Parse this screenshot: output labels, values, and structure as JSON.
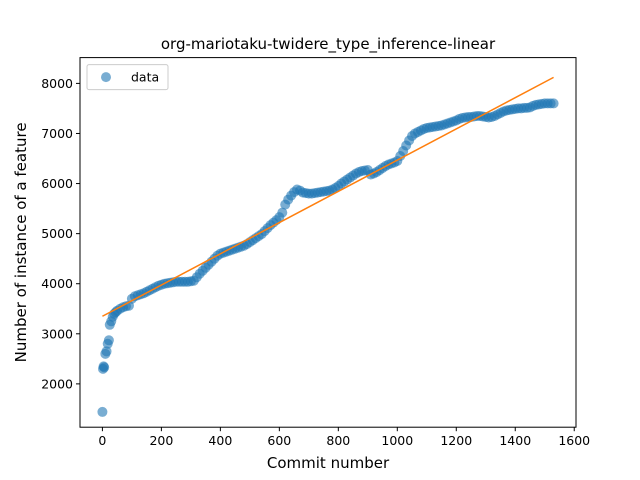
{
  "chart_data": {
    "type": "scatter",
    "title": "org-mariotaku-twidere_type_inference-linear",
    "xlabel": "Commit number",
    "ylabel": "Number of instance of a feature",
    "xlim": [
      -76,
      1606
    ],
    "ylim": [
      1135,
      8515
    ],
    "xticks": [
      0,
      200,
      400,
      600,
      800,
      1000,
      1200,
      1400,
      1600
    ],
    "xtick_labels": [
      "0",
      "200",
      "400",
      "600",
      "800",
      "1000",
      "1200",
      "1400",
      "1600"
    ],
    "yticks": [
      2000,
      3000,
      4000,
      5000,
      6000,
      7000,
      8000
    ],
    "ytick_labels": [
      "2000",
      "3000",
      "4000",
      "5000",
      "6000",
      "7000",
      "8000"
    ],
    "grid": false,
    "legend": {
      "position": "top-left",
      "entries": [
        "data"
      ]
    },
    "series": [
      {
        "name": "data",
        "kind": "scatter",
        "color": "#1f77b4",
        "points": [
          [
            0,
            1440
          ],
          [
            2,
            2300
          ],
          [
            4,
            2350
          ],
          [
            6,
            2330
          ],
          [
            10,
            2600
          ],
          [
            14,
            2650
          ],
          [
            18,
            2800
          ],
          [
            22,
            2870
          ],
          [
            25,
            3180
          ],
          [
            30,
            3250
          ],
          [
            35,
            3340
          ],
          [
            40,
            3400
          ],
          [
            45,
            3430
          ],
          [
            50,
            3460
          ],
          [
            60,
            3500
          ],
          [
            70,
            3530
          ],
          [
            80,
            3550
          ],
          [
            90,
            3560
          ],
          [
            100,
            3700
          ],
          [
            110,
            3750
          ],
          [
            120,
            3770
          ],
          [
            130,
            3790
          ],
          [
            140,
            3810
          ],
          [
            150,
            3840
          ],
          [
            160,
            3870
          ],
          [
            170,
            3900
          ],
          [
            180,
            3930
          ],
          [
            190,
            3960
          ],
          [
            200,
            3980
          ],
          [
            210,
            4000
          ],
          [
            220,
            4010
          ],
          [
            230,
            4020
          ],
          [
            240,
            4030
          ],
          [
            250,
            4040
          ],
          [
            260,
            4040
          ],
          [
            270,
            4040
          ],
          [
            280,
            4040
          ],
          [
            290,
            4040
          ],
          [
            300,
            4050
          ],
          [
            310,
            4060
          ],
          [
            320,
            4130
          ],
          [
            330,
            4200
          ],
          [
            340,
            4260
          ],
          [
            350,
            4320
          ],
          [
            360,
            4380
          ],
          [
            370,
            4440
          ],
          [
            380,
            4500
          ],
          [
            390,
            4560
          ],
          [
            400,
            4600
          ],
          [
            410,
            4620
          ],
          [
            420,
            4640
          ],
          [
            430,
            4660
          ],
          [
            440,
            4680
          ],
          [
            450,
            4700
          ],
          [
            460,
            4720
          ],
          [
            470,
            4740
          ],
          [
            480,
            4760
          ],
          [
            490,
            4790
          ],
          [
            500,
            4830
          ],
          [
            510,
            4870
          ],
          [
            520,
            4910
          ],
          [
            530,
            4950
          ],
          [
            540,
            4990
          ],
          [
            550,
            5050
          ],
          [
            560,
            5110
          ],
          [
            570,
            5170
          ],
          [
            580,
            5220
          ],
          [
            590,
            5270
          ],
          [
            600,
            5330
          ],
          [
            610,
            5420
          ],
          [
            620,
            5580
          ],
          [
            630,
            5680
          ],
          [
            640,
            5760
          ],
          [
            650,
            5830
          ],
          [
            660,
            5880
          ],
          [
            670,
            5860
          ],
          [
            680,
            5820
          ],
          [
            690,
            5810
          ],
          [
            700,
            5800
          ],
          [
            710,
            5800
          ],
          [
            720,
            5810
          ],
          [
            730,
            5820
          ],
          [
            740,
            5830
          ],
          [
            750,
            5840
          ],
          [
            760,
            5850
          ],
          [
            770,
            5860
          ],
          [
            780,
            5880
          ],
          [
            790,
            5910
          ],
          [
            800,
            5950
          ],
          [
            810,
            6000
          ],
          [
            820,
            6040
          ],
          [
            830,
            6080
          ],
          [
            840,
            6120
          ],
          [
            850,
            6160
          ],
          [
            860,
            6200
          ],
          [
            870,
            6230
          ],
          [
            880,
            6250
          ],
          [
            890,
            6260
          ],
          [
            900,
            6270
          ],
          [
            910,
            6180
          ],
          [
            920,
            6200
          ],
          [
            930,
            6230
          ],
          [
            940,
            6270
          ],
          [
            950,
            6310
          ],
          [
            960,
            6350
          ],
          [
            970,
            6380
          ],
          [
            980,
            6400
          ],
          [
            990,
            6420
          ],
          [
            1000,
            6450
          ],
          [
            1010,
            6550
          ],
          [
            1020,
            6650
          ],
          [
            1030,
            6760
          ],
          [
            1040,
            6860
          ],
          [
            1050,
            6950
          ],
          [
            1060,
            7000
          ],
          [
            1070,
            7030
          ],
          [
            1080,
            7060
          ],
          [
            1090,
            7090
          ],
          [
            1100,
            7110
          ],
          [
            1110,
            7120
          ],
          [
            1120,
            7130
          ],
          [
            1130,
            7140
          ],
          [
            1140,
            7150
          ],
          [
            1150,
            7160
          ],
          [
            1160,
            7180
          ],
          [
            1170,
            7200
          ],
          [
            1180,
            7220
          ],
          [
            1190,
            7240
          ],
          [
            1200,
            7260
          ],
          [
            1210,
            7290
          ],
          [
            1220,
            7310
          ],
          [
            1230,
            7320
          ],
          [
            1240,
            7330
          ],
          [
            1250,
            7330
          ],
          [
            1260,
            7340
          ],
          [
            1270,
            7350
          ],
          [
            1280,
            7350
          ],
          [
            1290,
            7340
          ],
          [
            1300,
            7330
          ],
          [
            1310,
            7320
          ],
          [
            1320,
            7330
          ],
          [
            1330,
            7350
          ],
          [
            1340,
            7380
          ],
          [
            1350,
            7410
          ],
          [
            1360,
            7440
          ],
          [
            1370,
            7460
          ],
          [
            1380,
            7470
          ],
          [
            1390,
            7480
          ],
          [
            1400,
            7490
          ],
          [
            1410,
            7500
          ],
          [
            1420,
            7500
          ],
          [
            1430,
            7510
          ],
          [
            1440,
            7510
          ],
          [
            1450,
            7520
          ],
          [
            1460,
            7550
          ],
          [
            1470,
            7570
          ],
          [
            1480,
            7580
          ],
          [
            1490,
            7590
          ],
          [
            1500,
            7600
          ],
          [
            1510,
            7600
          ],
          [
            1520,
            7600
          ],
          [
            1530,
            7600
          ]
        ]
      },
      {
        "name": "",
        "kind": "line",
        "color": "#ff7f0e",
        "points": [
          [
            0,
            3350
          ],
          [
            1530,
            8120
          ]
        ]
      }
    ]
  }
}
